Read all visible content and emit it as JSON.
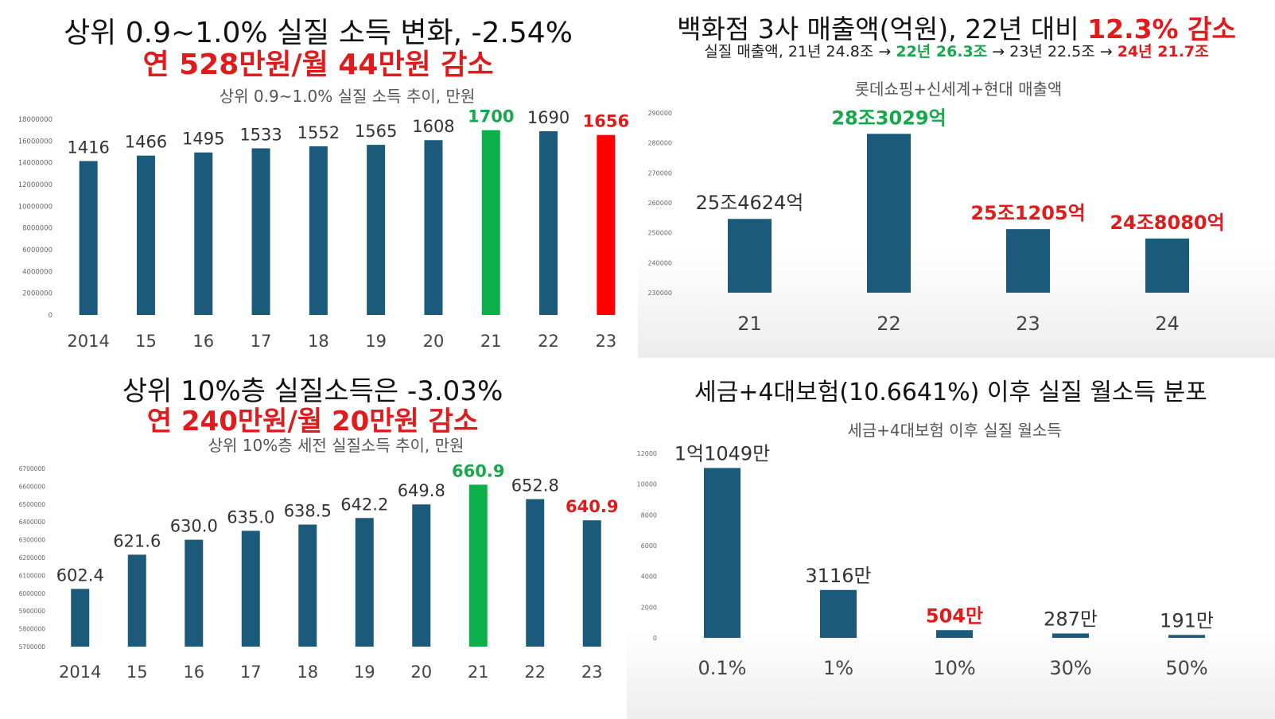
{
  "colors": {
    "bar": "#1b5a7a",
    "green": "#0cb04a",
    "red": "#ff0000",
    "red_text": "#e01b1b",
    "green_text": "#17a84c",
    "label": "#333333",
    "tick": "#666666",
    "grid": "#e2e2e2"
  },
  "panels": [
    {
      "title": "상위 0.9~1.0% 실질 소득 변화, -2.54%",
      "subtitle": "연 528만원/월 44만원 감소",
      "chart_data": {
        "type": "bar",
        "title": "상위 0.9~1.0% 실질 소득 추이, 만원",
        "categories": [
          "2014",
          "15",
          "16",
          "17",
          "18",
          "19",
          "20",
          "21",
          "22",
          "23"
        ],
        "values": [
          1416,
          1466,
          1495,
          1533,
          1552,
          1565,
          1608,
          1700,
          1690,
          1656
        ],
        "value_labels": [
          "1416",
          "1466",
          "1495",
          "1533",
          "1552",
          "1565",
          "1608",
          "1700",
          "1690",
          "1656"
        ],
        "bar_colors": [
          "bar",
          "bar",
          "bar",
          "bar",
          "bar",
          "bar",
          "bar",
          "green",
          "bar",
          "red"
        ],
        "label_colors": [
          "label",
          "label",
          "label",
          "label",
          "label",
          "label",
          "label",
          "green_text",
          "label",
          "red_text"
        ],
        "ylim": [
          0,
          18000000
        ],
        "scale": 10000,
        "yticks": [
          0,
          2000000,
          4000000,
          6000000,
          8000000,
          10000000,
          12000000,
          14000000,
          16000000,
          18000000
        ],
        "ytick_labels": [
          "0",
          "2000000",
          "4000000",
          "6000000",
          "8000000",
          "10000000",
          "12000000",
          "14000000",
          "16000000",
          "18000000"
        ],
        "grid": false
      }
    },
    {
      "title_parts": [
        "백화점 3사 매출액(억원), 22년 대비 ",
        "12.3% 감소"
      ],
      "note_parts": [
        "실질 매출액, 21년 24.8조 → ",
        "22년 26.3조",
        " → 23년 22.5조 → ",
        "24년 21.7조"
      ],
      "chart_data": {
        "type": "bar",
        "title": "롯데쇼핑+신세계+현대 매출액",
        "categories": [
          "21",
          "22",
          "23",
          "24"
        ],
        "values": [
          254624,
          283029,
          251205,
          248080
        ],
        "value_labels": [
          "25조4624억",
          "28조3029억",
          "25조1205억",
          "24조8080억"
        ],
        "bar_colors": [
          "bar",
          "bar",
          "bar",
          "bar"
        ],
        "label_colors": [
          "label",
          "green_text",
          "red_text",
          "red_text"
        ],
        "ylim": [
          230000,
          290000
        ],
        "scale": 1,
        "yticks": [
          230000,
          240000,
          250000,
          260000,
          270000,
          280000,
          290000
        ],
        "ytick_labels": [
          "230000",
          "240000",
          "250000",
          "260000",
          "270000",
          "280000",
          "290000"
        ],
        "grid": false
      }
    },
    {
      "title": "상위 10%층 실질소득은 -3.03%",
      "subtitle": "연 240만원/월 20만원 감소",
      "chart_data": {
        "type": "bar",
        "title": "상위 10%층 세전 실질소득 추이, 만원",
        "categories": [
          "2014",
          "15",
          "16",
          "17",
          "18",
          "19",
          "20",
          "21",
          "22",
          "23"
        ],
        "values": [
          602.4,
          621.6,
          630.0,
          635.0,
          638.5,
          642.2,
          649.8,
          660.9,
          652.8,
          640.9
        ],
        "value_labels": [
          "602.4",
          "621.6",
          "630.0",
          "635.0",
          "638.5",
          "642.2",
          "649.8",
          "660.9",
          "652.8",
          "640.9"
        ],
        "bar_colors": [
          "bar",
          "bar",
          "bar",
          "bar",
          "bar",
          "bar",
          "bar",
          "green",
          "bar",
          "bar"
        ],
        "label_colors": [
          "label",
          "label",
          "label",
          "label",
          "label",
          "label",
          "label",
          "green_text",
          "label",
          "red_text"
        ],
        "ylim": [
          5700000,
          6700000
        ],
        "scale": 10000,
        "yticks": [
          5700000,
          5800000,
          5900000,
          6000000,
          6100000,
          6200000,
          6300000,
          6400000,
          6500000,
          6600000,
          6700000
        ],
        "ytick_labels": [
          "5700000",
          "5800000",
          "5900000",
          "6000000",
          "6100000",
          "6200000",
          "6300000",
          "6400000",
          "6500000",
          "6600000",
          "6700000"
        ],
        "grid": false
      }
    },
    {
      "title": "세금+4대보험(10.6641%) 이후 실질 월소득 분포",
      "chart_data": {
        "type": "bar",
        "title": "세금+4대보험 이후 실질 월소득",
        "categories": [
          "0.1%",
          "1%",
          "10%",
          "30%",
          "50%"
        ],
        "values": [
          11049,
          3116,
          504,
          287,
          191
        ],
        "value_labels": [
          "1억1049만",
          "3116만",
          "504만",
          "287만",
          "191만"
        ],
        "bar_colors": [
          "bar",
          "bar",
          "bar",
          "bar",
          "bar"
        ],
        "label_colors": [
          "label",
          "label",
          "red_text",
          "label",
          "label"
        ],
        "ylim": [
          0,
          12000
        ],
        "scale": 1,
        "yticks": [
          0,
          2000,
          4000,
          6000,
          8000,
          10000,
          12000
        ],
        "ytick_labels": [
          "0",
          "2000",
          "4000",
          "6000",
          "8000",
          "10000",
          "12000"
        ],
        "grid": false
      }
    }
  ]
}
